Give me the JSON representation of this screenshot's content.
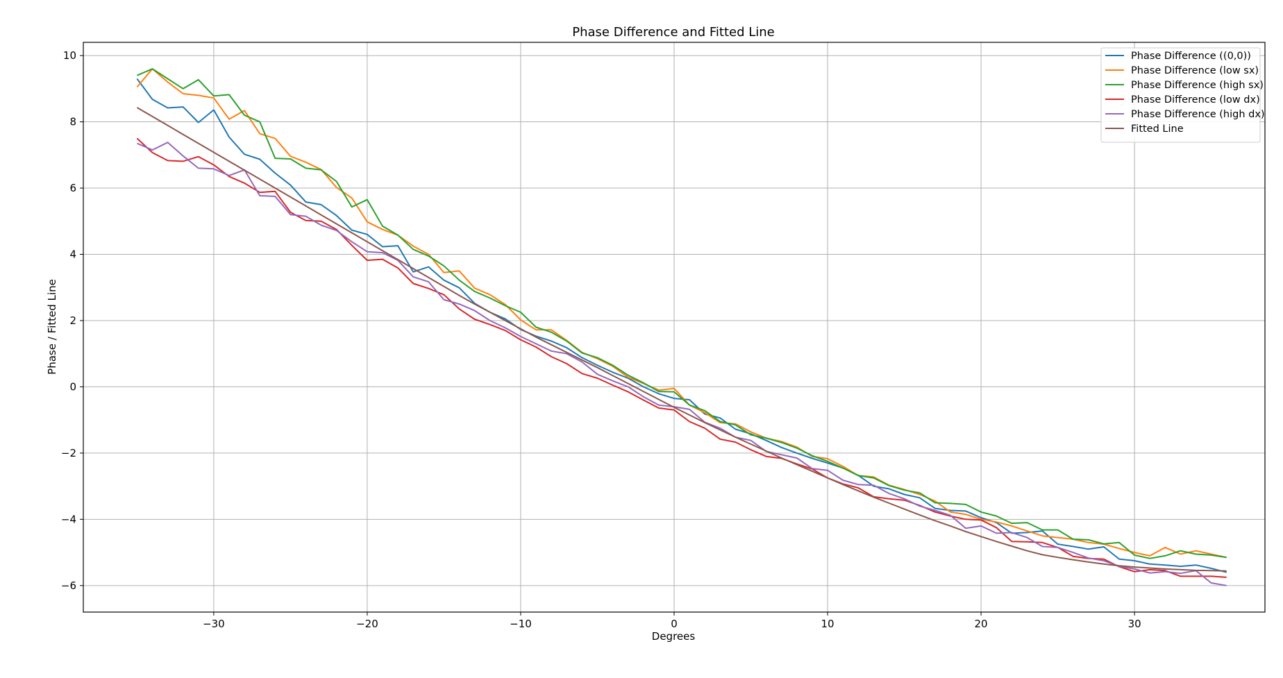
{
  "chart_data": {
    "type": "line",
    "title": "Phase Difference and Fitted Line",
    "xlabel": "Degrees",
    "ylabel": "Phase / Fitted Line",
    "xlim": [
      -38.5,
      38.5
    ],
    "ylim": [
      -6.8,
      10.4
    ],
    "xticks": [
      -30,
      -20,
      -10,
      0,
      10,
      20,
      30
    ],
    "xtick_labels": [
      "−30",
      "−20",
      "−10",
      "0",
      "10",
      "20",
      "30"
    ],
    "yticks": [
      -6,
      -4,
      -2,
      0,
      2,
      4,
      6,
      8,
      10
    ],
    "ytick_labels": [
      "−6",
      "−4",
      "−2",
      "0",
      "2",
      "4",
      "6",
      "8",
      "10"
    ],
    "grid": true,
    "legend_position": "top-right",
    "x_start": -35,
    "x_step": 1,
    "series": [
      {
        "name": "Phase Difference ((0,0))",
        "color": "#1f77b4",
        "values": [
          9.3,
          8.68,
          8.42,
          8.45,
          7.98,
          8.36,
          7.54,
          7.02,
          6.87,
          6.45,
          6.09,
          5.58,
          5.5,
          5.17,
          4.73,
          4.6,
          4.23,
          4.26,
          3.47,
          3.62,
          3.22,
          2.99,
          2.52,
          2.25,
          2.05,
          1.73,
          1.53,
          1.38,
          1.18,
          0.88,
          0.65,
          0.44,
          0.26,
          0.0,
          -0.21,
          -0.35,
          -0.39,
          -0.82,
          -0.94,
          -1.28,
          -1.42,
          -1.62,
          -1.83,
          -2.0,
          -2.16,
          -2.3,
          -2.45,
          -2.67,
          -3.0,
          -3.08,
          -3.25,
          -3.35,
          -3.67,
          -3.73,
          -3.75,
          -3.95,
          -4.1,
          -4.42,
          -4.4,
          -4.35,
          -4.75,
          -4.82,
          -4.9,
          -4.83,
          -5.2,
          -5.25,
          -5.35,
          -5.38,
          -5.42,
          -5.38,
          -5.48,
          -5.6
        ]
      },
      {
        "name": "Phase Difference (low sx)",
        "color": "#ff7f0e",
        "values": [
          9.05,
          9.6,
          9.2,
          8.85,
          8.8,
          8.72,
          8.08,
          8.34,
          7.64,
          7.5,
          6.96,
          6.78,
          6.56,
          6.02,
          5.7,
          4.98,
          4.75,
          4.58,
          4.25,
          4.0,
          3.45,
          3.5,
          2.98,
          2.78,
          2.48,
          2.02,
          1.72,
          1.72,
          1.4,
          1.04,
          0.85,
          0.62,
          0.29,
          0.1,
          -0.1,
          -0.05,
          -0.55,
          -0.78,
          -1.08,
          -1.12,
          -1.36,
          -1.55,
          -1.65,
          -1.82,
          -2.1,
          -2.17,
          -2.4,
          -2.68,
          -2.72,
          -2.97,
          -3.1,
          -3.25,
          -3.45,
          -3.78,
          -3.85,
          -4.0,
          -4.08,
          -4.2,
          -4.35,
          -4.5,
          -4.55,
          -4.6,
          -4.7,
          -4.75,
          -4.88,
          -5.0,
          -5.1,
          -4.85,
          -5.05,
          -4.95,
          -5.05,
          -5.15
        ]
      },
      {
        "name": "Phase Difference (high sx)",
        "color": "#2ca02c",
        "values": [
          9.4,
          9.6,
          9.3,
          9.0,
          9.27,
          8.78,
          8.82,
          8.2,
          8.0,
          6.9,
          6.88,
          6.6,
          6.55,
          6.2,
          5.43,
          5.65,
          4.85,
          4.58,
          4.15,
          3.95,
          3.65,
          3.22,
          2.88,
          2.68,
          2.45,
          2.25,
          1.8,
          1.65,
          1.38,
          1.02,
          0.88,
          0.65,
          0.35,
          0.12,
          -0.14,
          -0.15,
          -0.55,
          -0.72,
          -1.05,
          -1.15,
          -1.45,
          -1.55,
          -1.68,
          -1.85,
          -2.08,
          -2.25,
          -2.45,
          -2.68,
          -2.75,
          -2.98,
          -3.12,
          -3.2,
          -3.5,
          -3.52,
          -3.55,
          -3.78,
          -3.9,
          -4.12,
          -4.1,
          -4.32,
          -4.32,
          -4.6,
          -4.62,
          -4.74,
          -4.7,
          -5.08,
          -5.18,
          -5.1,
          -4.95,
          -5.05,
          -5.08,
          -5.15
        ]
      },
      {
        "name": "Phase Difference (low dx)",
        "color": "#d62728",
        "values": [
          7.5,
          7.07,
          6.83,
          6.81,
          6.95,
          6.7,
          6.35,
          6.15,
          5.87,
          5.9,
          5.27,
          5.02,
          5.0,
          4.75,
          4.27,
          3.82,
          3.85,
          3.59,
          3.12,
          2.97,
          2.78,
          2.35,
          2.04,
          1.88,
          1.7,
          1.42,
          1.2,
          0.91,
          0.7,
          0.4,
          0.26,
          0.05,
          -0.15,
          -0.4,
          -0.64,
          -0.7,
          -1.05,
          -1.25,
          -1.58,
          -1.67,
          -1.9,
          -2.1,
          -2.16,
          -2.33,
          -2.48,
          -2.75,
          -2.93,
          -3.05,
          -3.32,
          -3.38,
          -3.42,
          -3.58,
          -3.78,
          -3.9,
          -4.0,
          -4.02,
          -4.25,
          -4.67,
          -4.68,
          -4.7,
          -4.85,
          -5.12,
          -5.18,
          -5.2,
          -5.43,
          -5.58,
          -5.52,
          -5.55,
          -5.72,
          -5.72,
          -5.72,
          -5.75
        ]
      },
      {
        "name": "Phase Difference (high dx)",
        "color": "#9467bd",
        "values": [
          7.35,
          7.15,
          7.38,
          6.97,
          6.6,
          6.58,
          6.38,
          6.55,
          5.77,
          5.75,
          5.2,
          5.15,
          4.88,
          4.72,
          4.38,
          4.08,
          4.05,
          3.82,
          3.32,
          3.17,
          2.63,
          2.5,
          2.3,
          2.0,
          1.78,
          1.52,
          1.3,
          1.08,
          1.0,
          0.75,
          0.38,
          0.18,
          0.0,
          -0.3,
          -0.55,
          -0.6,
          -0.68,
          -1.07,
          -1.25,
          -1.52,
          -1.62,
          -1.95,
          -2.05,
          -2.15,
          -2.47,
          -2.52,
          -2.82,
          -2.95,
          -2.97,
          -3.22,
          -3.38,
          -3.6,
          -3.73,
          -3.88,
          -4.27,
          -4.2,
          -4.42,
          -4.4,
          -4.55,
          -4.82,
          -4.85,
          -5.0,
          -5.17,
          -5.25,
          -5.42,
          -5.5,
          -5.62,
          -5.58,
          -5.63,
          -5.55,
          -5.92,
          -6.0
        ]
      },
      {
        "name": "Fitted Line",
        "color": "#8c564b",
        "values": [
          8.43,
          8.16,
          7.89,
          7.62,
          7.35,
          7.08,
          6.81,
          6.54,
          6.27,
          6.0,
          5.73,
          5.46,
          5.19,
          4.92,
          4.65,
          4.38,
          4.11,
          3.84,
          3.57,
          3.3,
          3.03,
          2.76,
          2.5,
          2.25,
          2.0,
          1.75,
          1.5,
          1.27,
          1.04,
          0.81,
          0.58,
          0.34,
          0.1,
          -0.14,
          -0.38,
          -0.62,
          -0.85,
          -1.08,
          -1.3,
          -1.52,
          -1.73,
          -1.94,
          -2.15,
          -2.35,
          -2.55,
          -2.75,
          -2.95,
          -3.14,
          -3.33,
          -3.51,
          -3.69,
          -3.87,
          -4.04,
          -4.2,
          -4.37,
          -4.52,
          -4.67,
          -4.81,
          -4.95,
          -5.07,
          -5.15,
          -5.22,
          -5.29,
          -5.35,
          -5.4,
          -5.44,
          -5.47,
          -5.5,
          -5.52,
          -5.54,
          -5.55,
          -5.56
        ]
      }
    ]
  }
}
